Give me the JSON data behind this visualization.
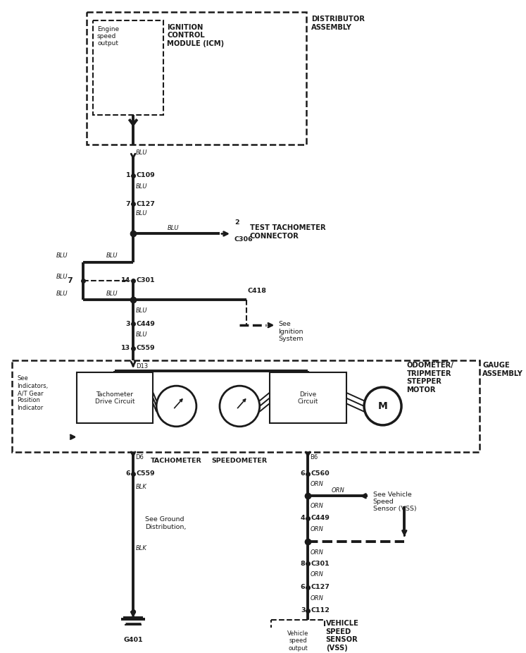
{
  "bg_color": "#ffffff",
  "line_color": "#1a1a1a",
  "lw_thick": 2.8,
  "lw_thin": 1.4,
  "lw_dash": 1.5,
  "fs_small": 6.0,
  "fs_med": 6.8,
  "fs_bold": 7.2,
  "distributor_label": "DISTRIBUTOR\nASSEMBLY",
  "icm_label": "IGNITION\nCONTROL\nMODULE (ICM)",
  "icm_inner": "Engine\nspeed\noutput",
  "test_tach": "TEST TACHOMETER\nCONNECTOR",
  "gauge_label": "GAUGE\nASSEMBLY",
  "odometer_label": "ODOMETER/\nTRIPMETER\nSTEPPER\nMOTOR",
  "indicators_label": "See\nIndicators,\nA/T Gear\nPosition\nIndicator",
  "tach_label": "Tachometer\nDrive Circuit",
  "drive_label": "Drive\nCircuit",
  "tachometer_text": "TACHOMETER",
  "speedometer_text": "SPEEDOMETER",
  "see_ignition": "See\nIgnition\nSystem",
  "see_ground": "See Ground\nDistribution,",
  "see_vehicle": "See Vehicle\nSpeed\nSensor (VSS)",
  "vss_label": "VEHICLE\nSPEED\nSENSOR\n(VSS)",
  "vss_inner": "Vehicle\nspeed\noutput",
  "ground_label": "G401"
}
